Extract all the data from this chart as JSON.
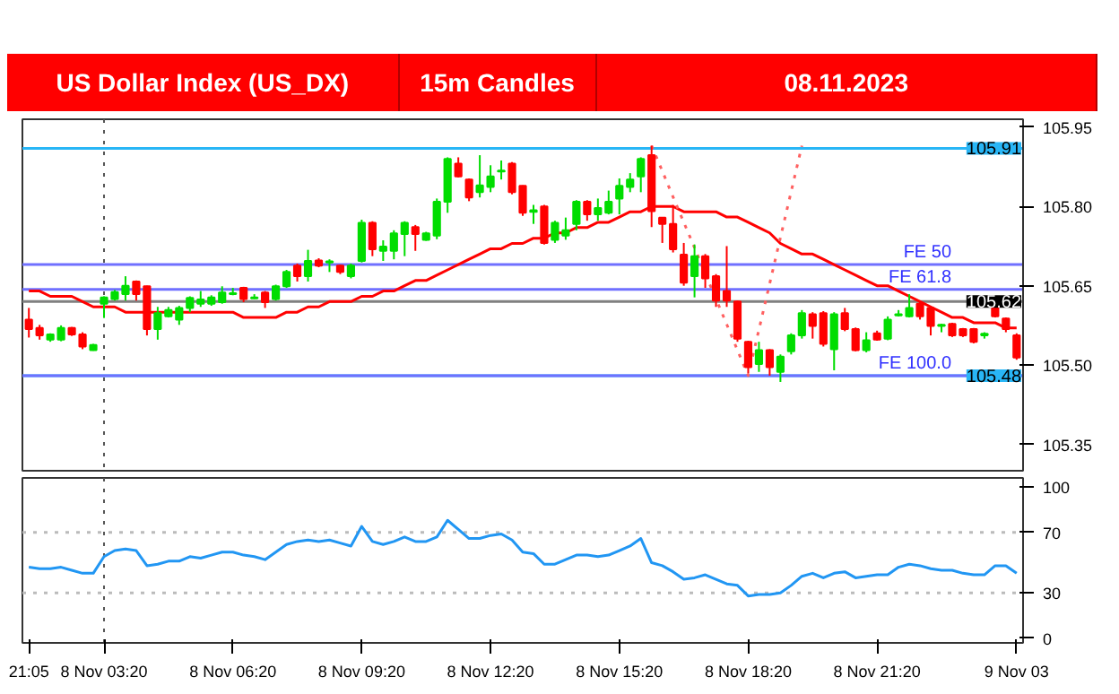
{
  "chart_data": [
    {
      "type": "candlestick",
      "title": "US Dollar Index (US_DX)",
      "subtitle": "15m Candles",
      "annotations": [
        "08.11.2023"
      ],
      "categories": [
        "21:05",
        null,
        null,
        null,
        null,
        null,
        null,
        "8 Nov 03:20",
        null,
        null,
        null,
        null,
        null,
        null,
        null,
        null,
        null,
        null,
        null,
        "8 Nov 06:20",
        null,
        null,
        null,
        null,
        null,
        null,
        null,
        null,
        null,
        null,
        null,
        "8 Nov 09:20",
        null,
        null,
        null,
        null,
        null,
        null,
        null,
        null,
        null,
        null,
        null,
        "8 Nov 12:20",
        null,
        null,
        null,
        null,
        null,
        null,
        null,
        null,
        null,
        null,
        null,
        "8 Nov 15:20",
        null,
        null,
        null,
        null,
        null,
        null,
        null,
        null,
        null,
        null,
        null,
        "8 Nov 18:20",
        null,
        null,
        null,
        null,
        null,
        null,
        null,
        null,
        null,
        null,
        null,
        "8 Nov 21:20",
        null,
        null,
        null,
        null,
        null,
        null,
        null,
        null,
        null,
        null,
        null,
        null,
        "9 Nov 03"
      ],
      "ohlc": [
        [
          105.586,
          105.608,
          105.552,
          105.568
        ],
        [
          105.57,
          105.576,
          105.548,
          105.556
        ],
        [
          105.548,
          105.56,
          105.544,
          105.558
        ],
        [
          105.548,
          105.575,
          105.545,
          105.57
        ],
        [
          105.57,
          105.572,
          105.555,
          105.558
        ],
        [
          105.558,
          105.562,
          105.53,
          105.535
        ],
        [
          105.528,
          105.54,
          105.527,
          105.538
        ],
        [
          105.616,
          105.63,
          105.589,
          105.628
        ],
        [
          105.625,
          105.642,
          105.622,
          105.638
        ],
        [
          105.634,
          105.668,
          105.622,
          105.65
        ],
        [
          105.658,
          105.66,
          105.622,
          105.634
        ],
        [
          105.649,
          105.65,
          105.556,
          105.568
        ],
        [
          105.568,
          105.61,
          105.548,
          105.598
        ],
        [
          105.592,
          105.61,
          105.59,
          105.604
        ],
        [
          105.586,
          105.612,
          105.576,
          105.608
        ],
        [
          105.608,
          105.63,
          105.6,
          105.627
        ],
        [
          105.616,
          105.64,
          105.61,
          105.624
        ],
        [
          105.616,
          105.632,
          105.612,
          105.628
        ],
        [
          105.619,
          105.649,
          105.616,
          105.637
        ],
        [
          105.634,
          105.646,
          105.632,
          105.636
        ],
        [
          105.646,
          105.648,
          105.619,
          105.625
        ],
        [
          105.626,
          105.634,
          105.625,
          105.628
        ],
        [
          105.637,
          105.64,
          105.608,
          105.619
        ],
        [
          105.625,
          105.652,
          105.622,
          105.649
        ],
        [
          105.649,
          105.68,
          105.646,
          105.676
        ],
        [
          105.688,
          105.692,
          105.658,
          105.668
        ],
        [
          105.668,
          105.718,
          105.658,
          105.697
        ],
        [
          105.698,
          105.702,
          105.685,
          105.688
        ],
        [
          105.694,
          105.7,
          105.676,
          105.696
        ],
        [
          105.688,
          105.69,
          105.672,
          105.676
        ],
        [
          105.668,
          105.692,
          105.664,
          105.688
        ],
        [
          105.697,
          105.775,
          105.694,
          105.769
        ],
        [
          105.769,
          105.772,
          105.706,
          105.719
        ],
        [
          105.716,
          105.736,
          105.697,
          105.724
        ],
        [
          105.716,
          105.755,
          105.7,
          105.749
        ],
        [
          105.748,
          105.772,
          105.706,
          105.769
        ],
        [
          105.761,
          105.765,
          105.716,
          105.748
        ],
        [
          105.737,
          105.752,
          105.735,
          105.749
        ],
        [
          105.745,
          105.815,
          105.738,
          105.809
        ],
        [
          105.809,
          105.893,
          105.788,
          105.89
        ],
        [
          105.881,
          105.893,
          105.855,
          105.857
        ],
        [
          105.851,
          105.853,
          105.81,
          105.817
        ],
        [
          105.827,
          105.897,
          105.817,
          105.84
        ],
        [
          105.837,
          105.878,
          105.827,
          105.857
        ],
        [
          105.866,
          105.887,
          105.851,
          105.868
        ],
        [
          105.881,
          105.884,
          105.823,
          105.827
        ],
        [
          105.839,
          105.84,
          105.782,
          105.788
        ],
        [
          105.79,
          105.803,
          105.767,
          105.793
        ],
        [
          105.8,
          105.803,
          105.728,
          105.731
        ],
        [
          105.737,
          105.773,
          105.731,
          105.769
        ],
        [
          105.745,
          105.779,
          105.737,
          105.755
        ],
        [
          105.767,
          105.812,
          105.755,
          105.809
        ],
        [
          105.809,
          105.812,
          105.773,
          105.785
        ],
        [
          105.785,
          105.815,
          105.773,
          105.797
        ],
        [
          105.788,
          105.83,
          105.785,
          105.809
        ],
        [
          105.815,
          105.853,
          105.785,
          105.839
        ],
        [
          105.837,
          105.863,
          105.827,
          105.851
        ],
        [
          105.857,
          105.893,
          105.827,
          105.89
        ],
        [
          105.897,
          105.915,
          105.761,
          105.791
        ],
        [
          105.779,
          105.78,
          105.731,
          105.767
        ],
        [
          105.767,
          105.803,
          105.713,
          105.719
        ],
        [
          105.709,
          105.731,
          105.65,
          105.656
        ],
        [
          105.668,
          105.728,
          105.628,
          105.706
        ],
        [
          105.706,
          105.71,
          105.646,
          105.664
        ],
        [
          105.668,
          105.672,
          105.61,
          105.622
        ],
        [
          105.64,
          105.725,
          105.61,
          105.622
        ],
        [
          105.62,
          105.622,
          105.544,
          105.55
        ],
        [
          105.544,
          105.546,
          105.484,
          105.496
        ],
        [
          105.502,
          105.544,
          105.487,
          105.528
        ],
        [
          105.528,
          105.53,
          105.48,
          105.496
        ],
        [
          105.487,
          105.52,
          105.468,
          105.516
        ],
        [
          105.526,
          105.56,
          105.52,
          105.556
        ],
        [
          105.556,
          105.604,
          105.55,
          105.598
        ],
        [
          105.596,
          105.6,
          105.55,
          105.574
        ],
        [
          105.598,
          105.602,
          105.535,
          105.54
        ],
        [
          105.53,
          105.6,
          105.49,
          105.596
        ],
        [
          105.598,
          105.608,
          105.564,
          105.568
        ],
        [
          105.568,
          105.571,
          105.526,
          105.528
        ],
        [
          105.528,
          105.562,
          105.524,
          105.547
        ],
        [
          105.56,
          105.565,
          105.546,
          105.548
        ],
        [
          105.55,
          105.592,
          105.547,
          105.586
        ],
        [
          105.594,
          105.604,
          105.592,
          105.596
        ],
        [
          105.592,
          105.634,
          105.59,
          105.608
        ],
        [
          105.616,
          105.622,
          105.586,
          105.592
        ],
        [
          105.608,
          105.61,
          105.556,
          105.574
        ],
        [
          105.574,
          105.578,
          105.562,
          105.576
        ],
        [
          105.578,
          105.58,
          105.553,
          105.556
        ],
        [
          105.568,
          105.57,
          105.553,
          105.556
        ],
        [
          105.568,
          105.57,
          105.541,
          105.544
        ],
        [
          105.556,
          105.562,
          105.55,
          105.559
        ],
        [
          105.608,
          105.616,
          105.59,
          105.592
        ],
        [
          105.588,
          105.59,
          105.562,
          105.568
        ],
        [
          105.556,
          105.56,
          105.51,
          105.514
        ]
      ],
      "colors": [
        "#ff0000",
        "#ff0000",
        "#00dd00",
        "#00dd00",
        "#ff0000",
        "#ff0000",
        "#00dd00",
        "#00dd00",
        "#00dd00",
        "#00dd00",
        "#ff0000",
        "#ff0000",
        "#00dd00",
        "#00dd00",
        "#00dd00",
        "#00dd00",
        "#00dd00",
        "#00dd00",
        "#00dd00",
        "#00dd00",
        "#ff0000",
        "#00dd00",
        "#ff0000",
        "#00dd00",
        "#00dd00",
        "#ff0000",
        "#00dd00",
        "#ff0000",
        "#00dd00",
        "#ff0000",
        "#00dd00",
        "#00dd00",
        "#ff0000",
        "#00dd00",
        "#00dd00",
        "#00dd00",
        "#ff0000",
        "#00dd00",
        "#00dd00",
        "#00dd00",
        "#ff0000",
        "#ff0000",
        "#00dd00",
        "#00dd00",
        "#00dd00",
        "#ff0000",
        "#ff0000",
        "#00dd00",
        "#ff0000",
        "#00dd00",
        "#00dd00",
        "#00dd00",
        "#ff0000",
        "#00dd00",
        "#00dd00",
        "#00dd00",
        "#00dd00",
        "#00dd00",
        "#ff0000",
        "#ff0000",
        "#ff0000",
        "#ff0000",
        "#00dd00",
        "#ff0000",
        "#ff0000",
        "#ff0000",
        "#ff0000",
        "#ff0000",
        "#00dd00",
        "#ff0000",
        "#00dd00",
        "#00dd00",
        "#00dd00",
        "#ff0000",
        "#ff0000",
        "#00dd00",
        "#ff0000",
        "#ff0000",
        "#00dd00",
        "#ff0000",
        "#00dd00",
        "#00dd00",
        "#00dd00",
        "#ff0000",
        "#ff0000",
        "#00dd00",
        "#ff0000",
        "#ff0000",
        "#ff0000",
        "#00dd00",
        "#ff0000",
        "#ff0000",
        "#ff0000"
      ],
      "series": [
        {
          "type": "line",
          "color": "#ff0000",
          "values": [
            105.64,
            105.64,
            105.63,
            105.63,
            105.63,
            105.62,
            105.61,
            105.61,
            105.61,
            105.6,
            105.6,
            105.6,
            105.6,
            105.6,
            105.6,
            105.6,
            105.6,
            105.6,
            105.6,
            105.6,
            105.59,
            105.59,
            105.59,
            105.59,
            105.6,
            105.6,
            105.61,
            105.61,
            105.62,
            105.62,
            105.62,
            105.63,
            105.63,
            105.64,
            105.64,
            105.65,
            105.66,
            105.66,
            105.67,
            105.68,
            105.69,
            105.7,
            105.71,
            105.72,
            105.72,
            105.73,
            105.73,
            105.74,
            105.74,
            105.75,
            105.75,
            105.76,
            105.76,
            105.77,
            105.77,
            105.78,
            105.79,
            105.79,
            105.8,
            105.8,
            105.8,
            105.79,
            105.79,
            105.79,
            105.79,
            105.78,
            105.78,
            105.77,
            105.76,
            105.75,
            105.73,
            105.72,
            105.71,
            105.71,
            105.7,
            105.69,
            105.68,
            105.67,
            105.66,
            105.65,
            105.65,
            105.64,
            105.63,
            105.62,
            105.61,
            105.6,
            105.59,
            105.59,
            105.58,
            105.58,
            105.58,
            105.57,
            105.57
          ]
        },
        {
          "type": "line",
          "color": "#ff6060",
          "line_style": "dotted",
          "values": [
            null,
            null,
            null,
            null,
            null,
            null,
            null,
            null,
            null,
            null,
            null,
            null,
            null,
            null,
            null,
            null,
            null,
            null,
            null,
            null,
            null,
            null,
            null,
            null,
            null,
            null,
            null,
            null,
            null,
            null,
            null,
            null,
            null,
            null,
            null,
            null,
            null,
            null,
            null,
            null,
            null,
            null,
            null,
            null,
            null,
            null,
            null,
            null,
            null,
            null,
            null,
            null,
            null,
            null,
            null,
            null,
            null,
            null,
            105.915,
            105.867,
            105.818,
            105.77,
            105.722,
            105.673,
            105.625,
            105.577,
            105.528,
            105.48,
            105.567,
            105.654,
            105.741,
            105.828,
            105.915,
            null,
            null,
            null,
            null,
            null,
            null,
            null,
            null,
            null,
            null,
            null,
            null,
            null,
            null,
            null,
            null,
            null,
            null,
            null,
            null
          ]
        }
      ],
      "ylim": [
        105.3,
        105.965
      ],
      "yticks": [
        {
          "value": 105.35,
          "label": "105.35"
        },
        {
          "value": 105.5,
          "label": "105.50"
        },
        {
          "value": 105.65,
          "label": "105.65"
        },
        {
          "value": 105.8,
          "label": "105.80"
        },
        {
          "value": 105.95,
          "label": "105.95"
        }
      ],
      "tick_labels": "y",
      "grid": false,
      "ref_lines": [
        {
          "axis": "y",
          "value": 105.91,
          "label": "105.91",
          "color": "#29b6f6"
        },
        {
          "axis": "y",
          "value": 105.48,
          "label": "105.48",
          "color": "#29b6f6"
        },
        {
          "axis": "y",
          "value": 105.62,
          "label": "105.62",
          "color": "#808080"
        },
        {
          "axis": "y",
          "value": 105.69,
          "label": "FE 50",
          "color": "#7070ff"
        },
        {
          "axis": "y",
          "value": 105.643,
          "label": "FE 61.8",
          "color": "#7070ff"
        },
        {
          "axis": "y",
          "value": 105.48,
          "label": "FE 100.0",
          "color": "#7070ff"
        },
        {
          "axis": "x",
          "value": "8 Nov 03:20",
          "color": "#555555",
          "line_style": "dotted"
        }
      ]
    },
    {
      "type": "line",
      "categories": [
        "21:05",
        null,
        null,
        null,
        null,
        null,
        null,
        "8 Nov 03:20",
        null,
        null,
        null,
        null,
        null,
        null,
        null,
        null,
        null,
        null,
        null,
        "8 Nov 06:20",
        null,
        null,
        null,
        null,
        null,
        null,
        null,
        null,
        null,
        null,
        null,
        "8 Nov 09:20",
        null,
        null,
        null,
        null,
        null,
        null,
        null,
        null,
        null,
        null,
        null,
        "8 Nov 12:20",
        null,
        null,
        null,
        null,
        null,
        null,
        null,
        null,
        null,
        null,
        null,
        "8 Nov 15:20",
        null,
        null,
        null,
        null,
        null,
        null,
        null,
        null,
        null,
        null,
        null,
        "8 Nov 18:20",
        null,
        null,
        null,
        null,
        null,
        null,
        null,
        null,
        null,
        null,
        null,
        "8 Nov 21:20",
        null,
        null,
        null,
        null,
        null,
        null,
        null,
        null,
        null,
        null,
        null,
        null,
        "9 Nov 03"
      ],
      "series": [
        {
          "color": "#2196f3",
          "values": [
            47,
            46,
            46,
            47,
            45,
            43,
            43,
            54,
            58,
            59,
            58,
            48,
            49,
            51,
            51,
            54,
            53,
            55,
            57,
            57,
            55,
            54,
            52,
            57,
            62,
            64,
            65,
            64,
            65,
            63,
            61,
            74,
            64,
            62,
            64,
            67,
            64,
            64,
            67,
            78,
            72,
            66,
            66,
            68,
            69,
            65,
            57,
            56,
            49,
            49,
            52,
            55,
            55,
            54,
            55,
            58,
            61,
            66,
            50,
            48,
            44,
            39,
            40,
            42,
            39,
            36,
            35,
            28,
            29,
            29,
            30,
            35,
            41,
            43,
            40,
            43,
            44,
            40,
            41,
            42,
            42,
            47,
            49,
            48,
            46,
            45,
            45,
            43,
            42,
            42,
            48,
            48,
            43
          ]
        }
      ],
      "ylim": [
        -3,
        106
      ],
      "yticks": [
        0,
        30,
        70,
        100
      ],
      "grid": false,
      "ref_lines": [
        {
          "axis": "y",
          "value": 70,
          "color": "#bbbbbb",
          "line_style": "dotted"
        },
        {
          "axis": "y",
          "value": 30,
          "color": "#bbbbbb",
          "line_style": "dotted"
        },
        {
          "axis": "x",
          "value": "8 Nov 03:20",
          "color": "#555555",
          "line_style": "dotted"
        }
      ]
    }
  ]
}
